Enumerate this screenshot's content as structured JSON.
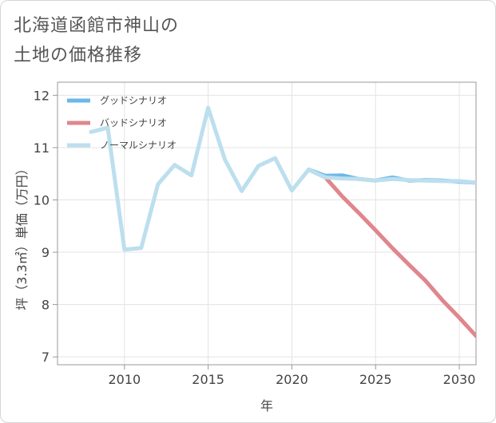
{
  "title": "北海道函館市神山の\n土地の価格推移",
  "chart_data": {
    "type": "line",
    "title": "北海道函館市神山の土地の価格推移",
    "xlabel": "年",
    "ylabel": "坪（3.3㎡）単価（万円）",
    "xlim": [
      2006,
      2031
    ],
    "ylim": [
      6.85,
      12.25
    ],
    "x_ticks": [
      2010,
      2015,
      2020,
      2025,
      2030
    ],
    "y_ticks": [
      7,
      8,
      9,
      10,
      11,
      12
    ],
    "grid": true,
    "legend_position": "top-left",
    "series": [
      {
        "name": "グッドシナリオ",
        "color": "#6cb8e8",
        "x": [
          2021,
          2022,
          2023,
          2024,
          2025,
          2026,
          2027,
          2028,
          2029,
          2030,
          2031
        ],
        "y": [
          10.58,
          10.46,
          10.47,
          10.4,
          10.37,
          10.43,
          10.37,
          10.38,
          10.37,
          10.35,
          10.33
        ]
      },
      {
        "name": "バッドシナリオ",
        "color": "#e0868d",
        "x": [
          2021,
          2022,
          2023,
          2024,
          2025,
          2026,
          2027,
          2028,
          2029,
          2030,
          2031
        ],
        "y": [
          10.58,
          10.43,
          10.07,
          9.75,
          9.42,
          9.08,
          8.76,
          8.45,
          8.08,
          7.75,
          7.4
        ]
      },
      {
        "name": "ノーマルシナリオ",
        "color": "#bcdfee",
        "x": [
          2008,
          2009,
          2010,
          2011,
          2012,
          2013,
          2014,
          2015,
          2016,
          2017,
          2018,
          2019,
          2020,
          2021,
          2022,
          2023,
          2024,
          2025,
          2026,
          2027,
          2028,
          2029,
          2030,
          2031
        ],
        "y": [
          11.3,
          11.38,
          9.05,
          9.08,
          10.3,
          10.67,
          10.47,
          11.76,
          10.77,
          10.17,
          10.65,
          10.8,
          10.18,
          10.58,
          10.43,
          10.41,
          10.4,
          10.37,
          10.4,
          10.38,
          10.37,
          10.36,
          10.36,
          10.33
        ]
      }
    ]
  }
}
